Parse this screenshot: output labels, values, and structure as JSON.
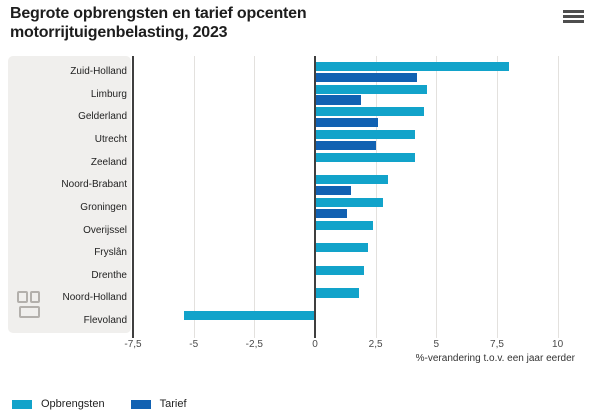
{
  "header": {
    "title": "Begrote opbrengsten en tarief opcenten motorrijtuigenbelasting, 2023",
    "menu_icon": "hamburger-menu"
  },
  "branding": {
    "logo": "cbs-logo"
  },
  "chart_data": {
    "type": "bar",
    "orientation": "horizontal",
    "title": "Begrote opbrengsten en tarief opcenten motorrijtuigenbelasting, 2023",
    "categories": [
      "Zuid-Holland",
      "Limburg",
      "Gelderland",
      "Utrecht",
      "Zeeland",
      "Noord-Brabant",
      "Groningen",
      "Overijssel",
      "Fryslân",
      "Drenthe",
      "Noord-Holland",
      "Flevoland"
    ],
    "series": [
      {
        "name": "Opbrengsten",
        "color": "#12a3ca",
        "values": [
          8.0,
          4.6,
          4.5,
          4.1,
          4.1,
          3.0,
          2.8,
          2.4,
          2.2,
          2.0,
          1.8,
          -5.4
        ]
      },
      {
        "name": "Tarief",
        "color": "#1161b2",
        "values": [
          4.2,
          1.9,
          2.6,
          2.5,
          0,
          1.5,
          1.3,
          0,
          0,
          0,
          0,
          0
        ]
      }
    ],
    "xlabel": "%-verandering t.o.v. een jaar eerder",
    "xlim": [
      -7.5,
      10
    ],
    "xticks": [
      -7.5,
      -5,
      -2.5,
      0,
      2.5,
      5,
      7.5,
      10
    ],
    "xtick_labels": [
      "-7,5",
      "-5",
      "-2,5",
      "0",
      "2,5",
      "5",
      "7,5",
      "10"
    ],
    "grid": true,
    "legend_position": "bottom",
    "colors": {
      "grid_light": "#e3e1de",
      "axis_dark": "#3f3f3f",
      "panel_bg": "#f0efed"
    }
  }
}
